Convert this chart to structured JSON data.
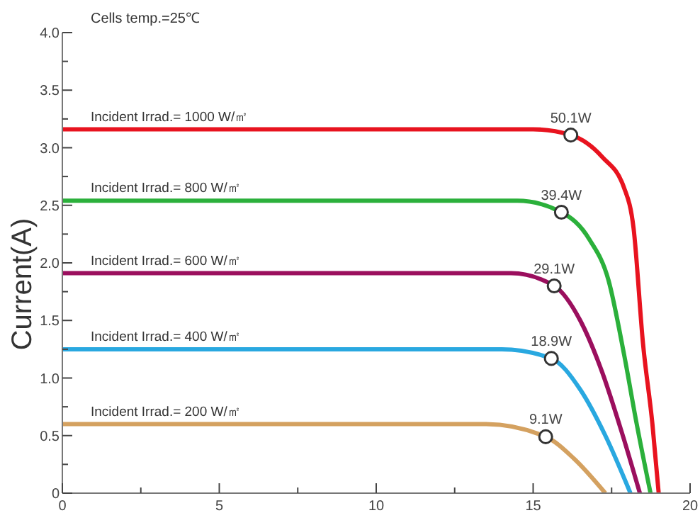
{
  "chart_data": {
    "type": "line",
    "ylabel": "Current(A)",
    "annotations": [
      "Cells temp.=25℃",
      {
        "text": "50.1W",
        "x": 16.2,
        "y": 3.11
      },
      {
        "text": "39.4W",
        "x": 15.9,
        "y": 2.44
      },
      {
        "text": "29.1W",
        "x": 15.67,
        "y": 1.8
      },
      {
        "text": "18.9W",
        "x": 15.58,
        "y": 1.17
      },
      {
        "text": "9.1W",
        "x": 15.4,
        "y": 0.49
      }
    ],
    "series": [
      {
        "name": "Incident Irrad.= 1000 W/㎡",
        "color": "#e8131f",
        "x": [
          0,
          15,
          16.2,
          17.2,
          17.9,
          18.2,
          18.5,
          18.8,
          19.0
        ],
        "values": [
          3.16,
          3.16,
          3.11,
          2.92,
          2.65,
          2.3,
          1.3,
          0.6,
          0
        ]
      },
      {
        "name": "Incident Irrad.= 800 W/㎡",
        "color": "#2bb03b",
        "x": [
          0,
          14.5,
          15.9,
          16.8,
          17.4,
          17.9,
          18.3,
          18.74
        ],
        "values": [
          2.54,
          2.54,
          2.44,
          2.2,
          1.85,
          1.2,
          0.6,
          0
        ]
      },
      {
        "name": "Incident Irrad.= 600 W/㎡",
        "color": "#9b0f5e",
        "x": [
          0,
          14.3,
          15.67,
          16.5,
          17.2,
          17.8,
          18.4
        ],
        "values": [
          1.91,
          1.91,
          1.8,
          1.5,
          1.05,
          0.55,
          0
        ]
      },
      {
        "name": "Incident Irrad.= 400 W/㎡",
        "color": "#29a8e0",
        "x": [
          0,
          14,
          15.58,
          16.5,
          17.3,
          18.1
        ],
        "values": [
          1.25,
          1.25,
          1.17,
          0.9,
          0.5,
          0
        ]
      },
      {
        "name": "Incident Irrad.= 200 W/㎡",
        "color": "#d4a160",
        "x": [
          0,
          13.5,
          15.4,
          16.3,
          17.3
        ],
        "values": [
          0.6,
          0.6,
          0.49,
          0.3,
          0
        ]
      },
      {
        "type": "scatter",
        "color": "#ffffff",
        "marker": "circle",
        "x": [
          16.2,
          15.9,
          15.67,
          15.58,
          15.4
        ],
        "values": [
          3.11,
          2.44,
          1.8,
          1.17,
          0.49
        ]
      }
    ],
    "marker": "none",
    "xlim": [
      0,
      20
    ],
    "xticks": [
      0,
      {
        "value": 2.5,
        "label": null
      },
      5,
      {
        "value": 7.5,
        "label": null
      },
      10,
      {
        "value": 12.5,
        "label": null
      },
      15,
      {
        "value": 17.5,
        "label": null
      },
      20
    ],
    "ylim": [
      0,
      4
    ],
    "yticks": [
      0,
      {
        "value": 0.25,
        "label": null
      },
      0.5,
      {
        "value": 0.75,
        "label": null
      },
      {
        "value": 1,
        "label": "1.0"
      },
      {
        "value": 1.25,
        "label": null
      },
      1.5,
      {
        "value": 1.75,
        "label": null
      },
      {
        "value": 2,
        "label": "2.0"
      },
      {
        "value": 2.25,
        "label": null
      },
      2.5,
      {
        "value": 2.75,
        "label": null
      },
      {
        "value": 3,
        "label": "3.0"
      },
      {
        "value": 3.25,
        "label": null
      },
      3.5,
      {
        "value": 3.75,
        "label": null
      },
      {
        "value": 4,
        "label": "4.0"
      }
    ],
    "grid": false
  }
}
